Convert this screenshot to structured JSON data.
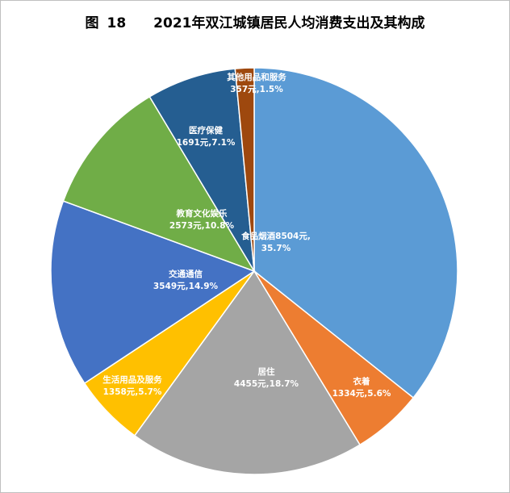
{
  "title": {
    "figure_word": "图",
    "figure_number": "18",
    "text": "2021年双江城镇居民人均消费支出及其构成"
  },
  "chart_data": {
    "type": "pie",
    "title": "2021年双江城镇居民人均消费支出及其构成",
    "slices": [
      {
        "name": "食品烟酒",
        "value": 8504,
        "percent": 35.7,
        "label_line1": "食品烟酒8504元,",
        "label_line2": "35.7%",
        "color": "#5b9bd5"
      },
      {
        "name": "衣着",
        "value": 1334,
        "percent": 5.6,
        "label_line1": "衣着",
        "label_line2": "1334元,5.6%",
        "color": "#ed7d31"
      },
      {
        "name": "居住",
        "value": 4455,
        "percent": 18.7,
        "label_line1": "居住",
        "label_line2": "4455元,18.7%",
        "color": "#a5a5a5"
      },
      {
        "name": "生活用品及服务",
        "value": 1358,
        "percent": 5.7,
        "label_line1": "生活用品及服务",
        "label_line2": "1358元,5.7%",
        "color": "#ffc000"
      },
      {
        "name": "交通通信",
        "value": 3549,
        "percent": 14.9,
        "label_line1": "交通通信",
        "label_line2": "3549元,14.9%",
        "color": "#4472c4"
      },
      {
        "name": "教育文化娱乐",
        "value": 2573,
        "percent": 10.8,
        "label_line1": "教育文化娱乐",
        "label_line2": "2573元,10.8%",
        "color": "#70ad47"
      },
      {
        "name": "医疗保健",
        "value": 1691,
        "percent": 7.1,
        "label_line1": "医疗保健",
        "label_line2": "1691元,7.1%",
        "color": "#255e91"
      },
      {
        "name": "其他用品和服务",
        "value": 357,
        "percent": 1.5,
        "label_line1": "其他用品和服务",
        "label_line2": "357元,1.5%",
        "color": "#9e480e"
      }
    ],
    "legend": "none"
  }
}
